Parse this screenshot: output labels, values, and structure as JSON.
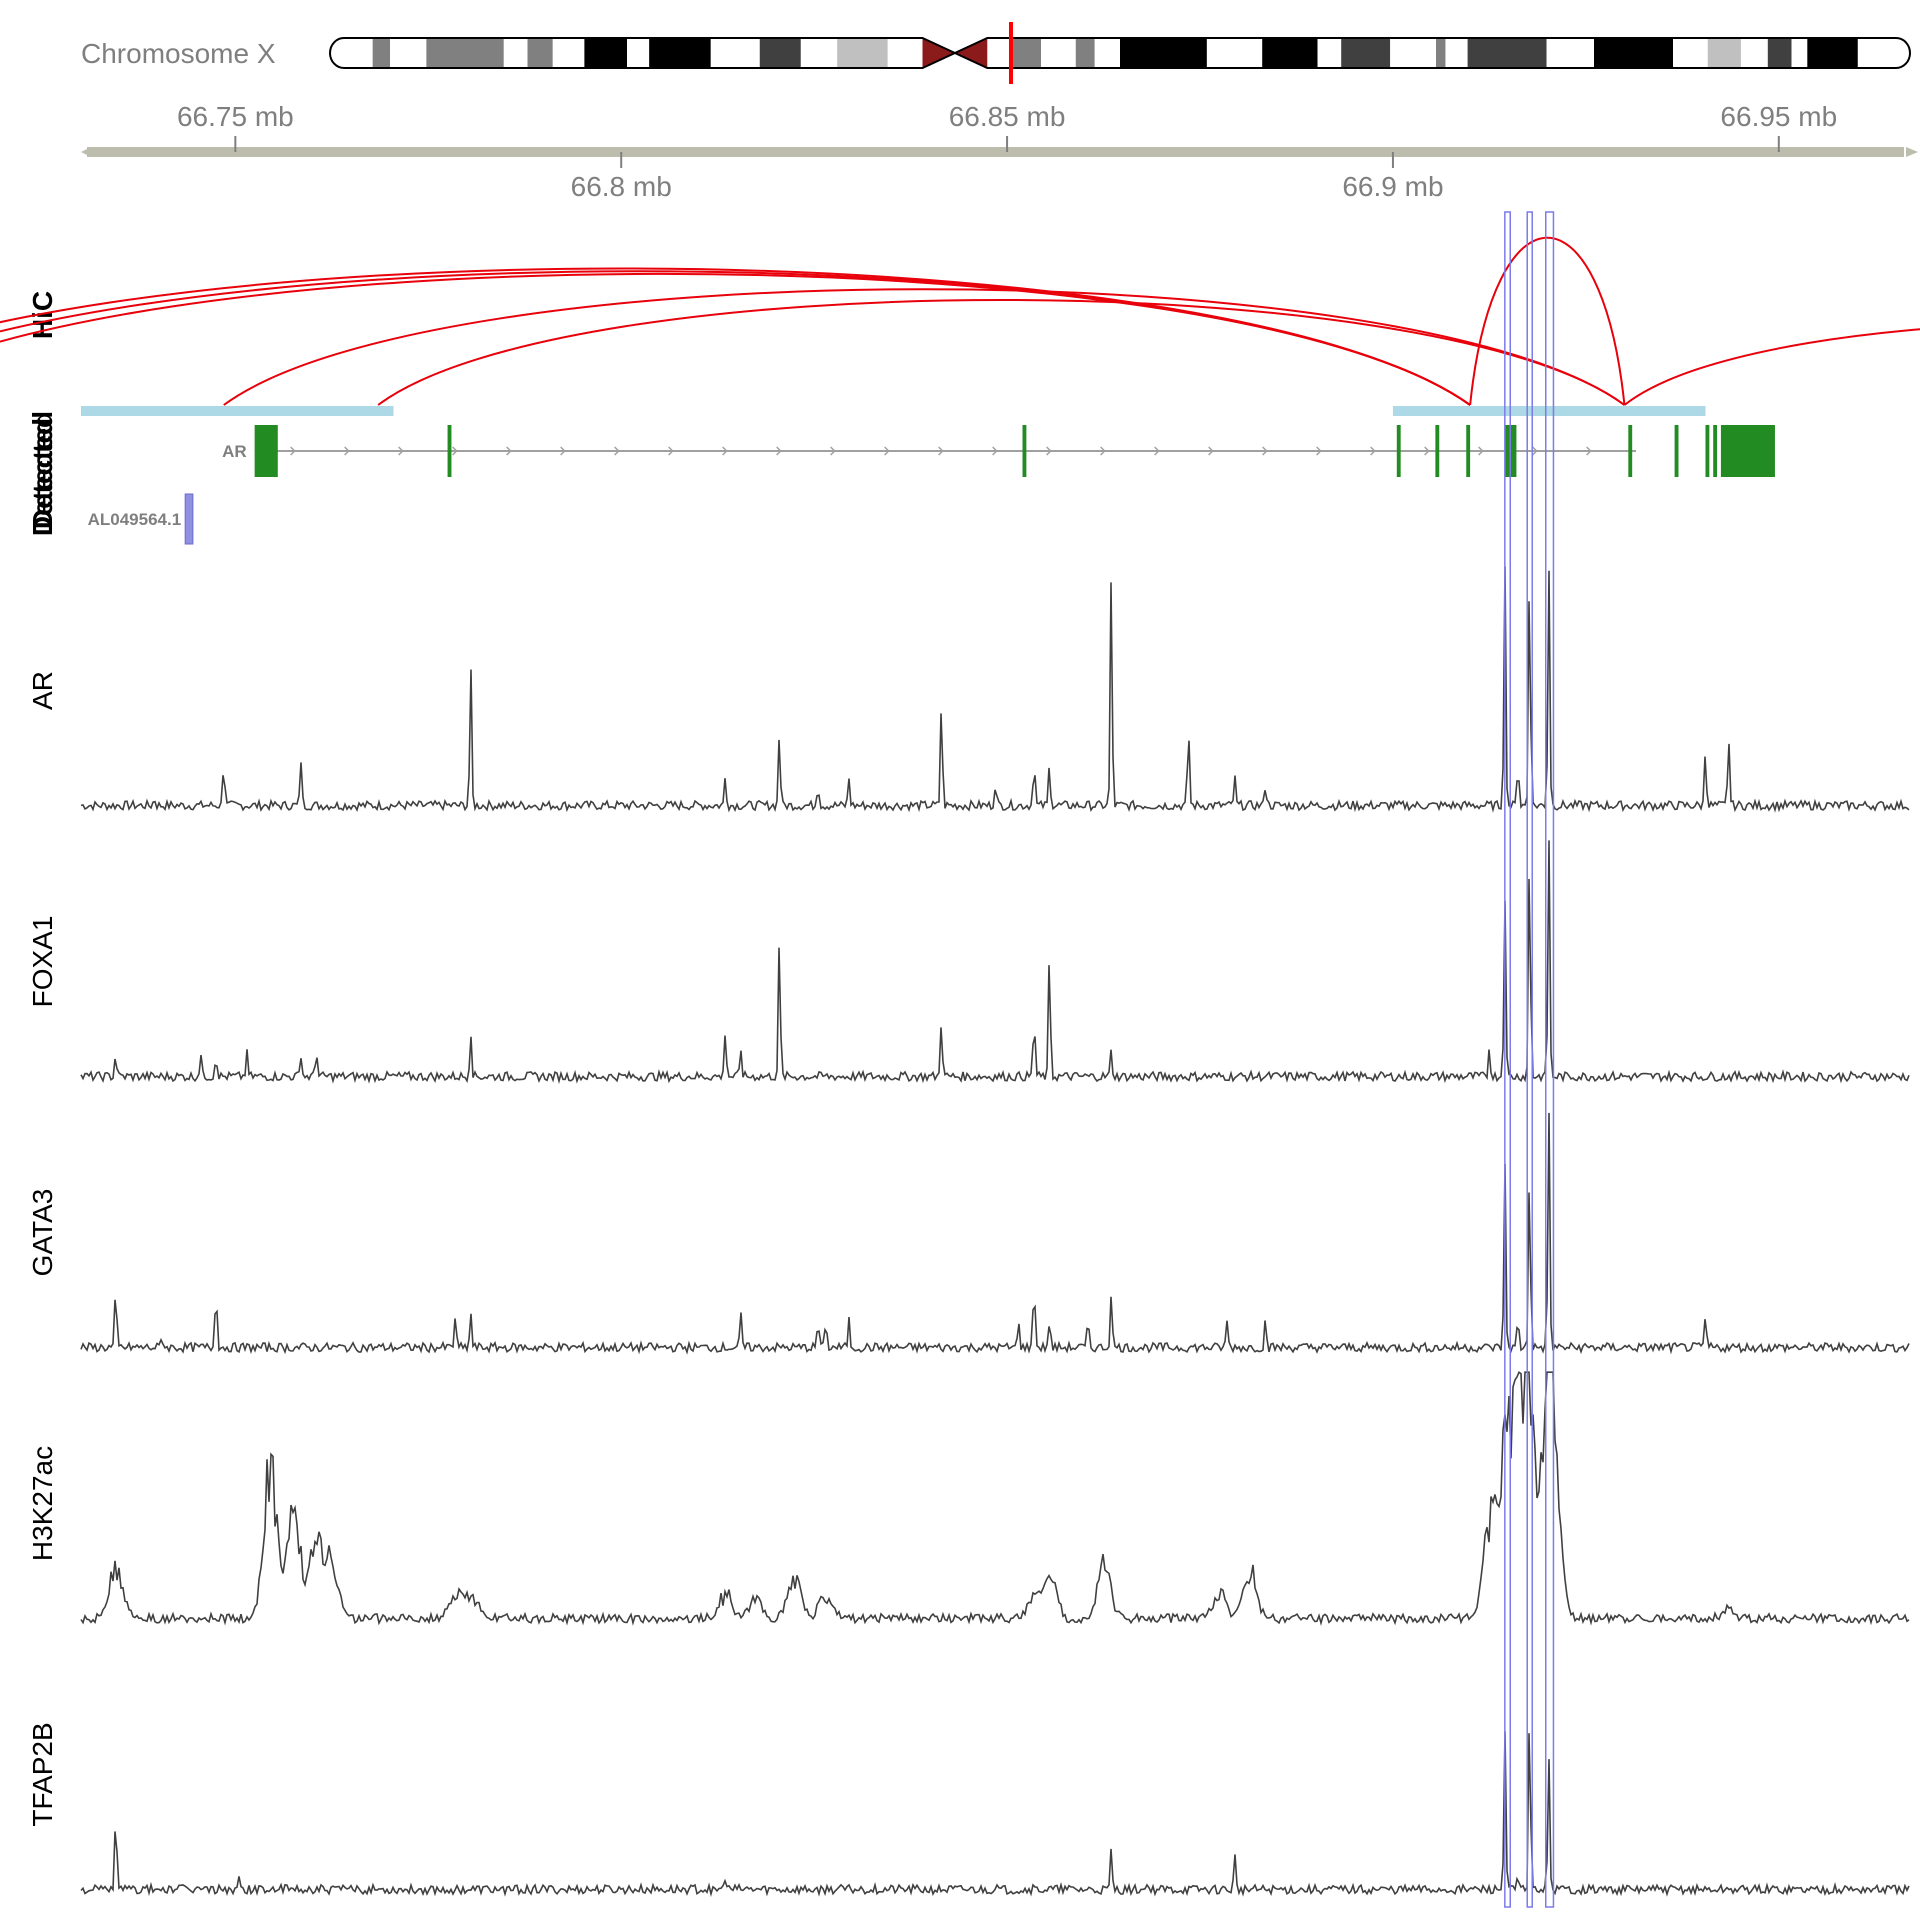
{
  "ideogram": {
    "label": "Chromosome X",
    "bands": [
      {
        "from": 0,
        "to": 0.027,
        "stain": "white"
      },
      {
        "from": 0.027,
        "to": 0.038,
        "stain": "#808080"
      },
      {
        "from": 0.038,
        "to": 0.061,
        "stain": "white"
      },
      {
        "from": 0.061,
        "to": 0.11,
        "stain": "#808080"
      },
      {
        "from": 0.11,
        "to": 0.125,
        "stain": "white"
      },
      {
        "from": 0.125,
        "to": 0.141,
        "stain": "#808080"
      },
      {
        "from": 0.141,
        "to": 0.161,
        "stain": "white"
      },
      {
        "from": 0.161,
        "to": 0.188,
        "stain": "#000000"
      },
      {
        "from": 0.188,
        "to": 0.202,
        "stain": "white"
      },
      {
        "from": 0.202,
        "to": 0.241,
        "stain": "#000000"
      },
      {
        "from": 0.241,
        "to": 0.272,
        "stain": "white"
      },
      {
        "from": 0.272,
        "to": 0.298,
        "stain": "#404040"
      },
      {
        "from": 0.298,
        "to": 0.321,
        "stain": "white"
      },
      {
        "from": 0.321,
        "to": 0.353,
        "stain": "#c0c0c0"
      },
      {
        "from": 0.353,
        "to": 0.375,
        "stain": "white"
      },
      {
        "from": 0.416,
        "to": 0.431,
        "stain": "white"
      },
      {
        "from": 0.431,
        "to": 0.45,
        "stain": "#808080"
      },
      {
        "from": 0.45,
        "to": 0.472,
        "stain": "white"
      },
      {
        "from": 0.472,
        "to": 0.484,
        "stain": "#808080"
      },
      {
        "from": 0.484,
        "to": 0.5,
        "stain": "white"
      },
      {
        "from": 0.5,
        "to": 0.555,
        "stain": "#000000"
      },
      {
        "from": 0.555,
        "to": 0.59,
        "stain": "white"
      },
      {
        "from": 0.59,
        "to": 0.625,
        "stain": "#000000"
      },
      {
        "from": 0.625,
        "to": 0.64,
        "stain": "white"
      },
      {
        "from": 0.64,
        "to": 0.671,
        "stain": "#404040"
      },
      {
        "from": 0.671,
        "to": 0.7,
        "stain": "white"
      },
      {
        "from": 0.7,
        "to": 0.706,
        "stain": "#808080"
      },
      {
        "from": 0.706,
        "to": 0.72,
        "stain": "white"
      },
      {
        "from": 0.72,
        "to": 0.77,
        "stain": "#404040"
      },
      {
        "from": 0.77,
        "to": 0.8,
        "stain": "white"
      },
      {
        "from": 0.8,
        "to": 0.85,
        "stain": "#000000"
      },
      {
        "from": 0.85,
        "to": 0.872,
        "stain": "white"
      },
      {
        "from": 0.872,
        "to": 0.893,
        "stain": "#c0c0c0"
      },
      {
        "from": 0.893,
        "to": 0.91,
        "stain": "white"
      },
      {
        "from": 0.91,
        "to": 0.925,
        "stain": "#404040"
      },
      {
        "from": 0.925,
        "to": 0.935,
        "stain": "white"
      },
      {
        "from": 0.935,
        "to": 0.967,
        "stain": "#000000"
      },
      {
        "from": 0.967,
        "to": 1,
        "stain": "white"
      }
    ],
    "centromere": {
      "from": 0.375,
      "to": 0.416,
      "color": "#8b1a1a"
    },
    "highlight": {
      "pos": 0.431,
      "color": "#ff0000"
    }
  },
  "axis": {
    "start_mb": 66.73,
    "end_mb": 66.967,
    "ticks": [
      {
        "mb": 66.75,
        "label": "66.75 mb",
        "row": "top"
      },
      {
        "mb": 66.8,
        "label": "66.8 mb",
        "row": "bottom"
      },
      {
        "mb": 66.85,
        "label": "66.85 mb",
        "row": "top"
      },
      {
        "mb": 66.9,
        "label": "66.9 mb",
        "row": "bottom"
      },
      {
        "mb": 66.95,
        "label": "66.95 mb",
        "row": "top"
      }
    ]
  },
  "hic": {
    "label": "HiC",
    "color": "#e8000b",
    "loops": [
      {
        "start": 66.7,
        "end": 66.91
      },
      {
        "start": 66.695,
        "end": 66.91
      },
      {
        "start": 66.69,
        "end": 66.91
      },
      {
        "start": 66.7485,
        "end": 66.93
      },
      {
        "start": 66.7685,
        "end": 66.93
      },
      {
        "start": 66.91,
        "end": 66.93
      },
      {
        "start": 66.93,
        "end": 67.05
      }
    ]
  },
  "detected": {
    "label_a": "Detected",
    "label_b": "Detected",
    "color": "#add8e6",
    "regions": [
      {
        "start": 66.73,
        "end": 66.7705
      },
      {
        "start": 66.9,
        "end": 66.9405
      }
    ]
  },
  "genes": {
    "ar": {
      "name": "AR",
      "start": 66.7525,
      "end": 66.9315,
      "color": "#228b22",
      "exons": [
        {
          "s": 66.7525,
          "e": 66.7555
        },
        {
          "s": 66.7775,
          "e": 66.778
        },
        {
          "s": 66.852,
          "e": 66.8525
        },
        {
          "s": 66.9005,
          "e": 66.901
        },
        {
          "s": 66.9055,
          "e": 66.906
        },
        {
          "s": 66.9095,
          "e": 66.91
        },
        {
          "s": 66.9145,
          "e": 66.916
        },
        {
          "s": 66.9305,
          "e": 66.931
        },
        {
          "s": 66.9365,
          "e": 66.937
        },
        {
          "s": 66.9405,
          "e": 66.941
        },
        {
          "s": 66.9415,
          "e": 66.942
        },
        {
          "s": 66.9425,
          "e": 66.9495
        }
      ]
    },
    "lnc": {
      "name": "AL049564.1",
      "start": 66.7435,
      "end": 66.7445,
      "color": "#9090e0"
    }
  },
  "highlights": [
    {
      "start": 66.9145,
      "end": 66.9152
    },
    {
      "start": 66.9174,
      "end": 66.918
    },
    {
      "start": 66.9198,
      "end": 66.9208
    }
  ],
  "signals": [
    {
      "label": "AR",
      "color": "#404040"
    },
    {
      "label": "FOXA1",
      "color": "#404040"
    },
    {
      "label": "GATA3",
      "color": "#404040"
    },
    {
      "label": "H3K27ac",
      "color": "#404040"
    },
    {
      "label": "TFAP2B",
      "color": "#404040"
    }
  ],
  "signal_peaks": {
    "AR": [
      [
        66.7395,
        0.03
      ],
      [
        66.7485,
        0.2
      ],
      [
        66.7585,
        0.2
      ],
      [
        66.7805,
        0.6
      ],
      [
        66.8135,
        0.13
      ],
      [
        66.8205,
        0.32
      ],
      [
        66.8255,
        0.1
      ],
      [
        66.8295,
        0.12
      ],
      [
        66.8415,
        0.46
      ],
      [
        66.8535,
        0.2
      ],
      [
        66.8555,
        0.18
      ],
      [
        66.8485,
        0.1
      ],
      [
        66.8635,
        1.0
      ],
      [
        66.8735,
        0.34
      ],
      [
        66.8795,
        0.12
      ],
      [
        66.8835,
        0.1
      ],
      [
        66.9145,
        1.05
      ],
      [
        66.9162,
        0.2
      ],
      [
        66.9177,
        1.05
      ],
      [
        66.9202,
        1.05
      ],
      [
        66.9405,
        0.25
      ],
      [
        66.9435,
        0.3
      ],
      [
        66.9675,
        0.2
      ],
      [
        66.9735,
        0.25
      ]
    ],
    "FOXA1": [
      [
        66.7345,
        0.1
      ],
      [
        66.7455,
        0.1
      ],
      [
        66.7475,
        0.1
      ],
      [
        66.7515,
        0.1
      ],
      [
        66.7585,
        0.1
      ],
      [
        66.7605,
        0.12
      ],
      [
        66.7805,
        0.2
      ],
      [
        66.8135,
        0.21
      ],
      [
        66.8155,
        0.12
      ],
      [
        66.8205,
        0.6
      ],
      [
        66.8415,
        0.26
      ],
      [
        66.8535,
        0.27
      ],
      [
        66.8555,
        0.54
      ],
      [
        66.8635,
        0.11
      ],
      [
        66.9125,
        0.13
      ],
      [
        66.9145,
        0.8
      ],
      [
        66.9177,
        1.0
      ],
      [
        66.9202,
        1.05
      ],
      [
        66.9675,
        0.54
      ]
    ],
    "GATA3": [
      [
        66.7345,
        0.25
      ],
      [
        66.7405,
        0.05
      ],
      [
        66.7475,
        0.28
      ],
      [
        66.7785,
        0.14
      ],
      [
        66.7805,
        0.15
      ],
      [
        66.8155,
        0.14
      ],
      [
        66.8255,
        0.12
      ],
      [
        66.8265,
        0.12
      ],
      [
        66.8295,
        0.12
      ],
      [
        66.8515,
        0.12
      ],
      [
        66.8535,
        0.3
      ],
      [
        66.8555,
        0.12
      ],
      [
        66.8605,
        0.12
      ],
      [
        66.8635,
        0.25
      ],
      [
        66.8785,
        0.12
      ],
      [
        66.8835,
        0.13
      ],
      [
        66.9145,
        0.8
      ],
      [
        66.9162,
        0.12
      ],
      [
        66.9177,
        0.8
      ],
      [
        66.9202,
        1.05
      ],
      [
        66.9405,
        0.14
      ],
      [
        66.9675,
        0.26
      ]
    ],
    "H3K27ac": [
      [
        66.7345,
        0.28
      ],
      [
        66.7545,
        0.8
      ],
      [
        66.7575,
        0.6
      ],
      [
        66.7605,
        0.45
      ],
      [
        66.7625,
        0.3
      ],
      [
        66.7785,
        0.12
      ],
      [
        66.7805,
        0.12
      ],
      [
        66.8135,
        0.13
      ],
      [
        66.8175,
        0.12
      ],
      [
        66.8225,
        0.22
      ],
      [
        66.8265,
        0.12
      ],
      [
        66.8535,
        0.13
      ],
      [
        66.8555,
        0.22
      ],
      [
        66.8625,
        0.3
      ],
      [
        66.8775,
        0.14
      ],
      [
        66.8815,
        0.25
      ],
      [
        66.9125,
        0.5
      ],
      [
        66.9145,
        0.8
      ],
      [
        66.9162,
        0.9
      ],
      [
        66.9177,
        1.0
      ],
      [
        66.9202,
        1.05
      ],
      [
        66.921,
        0.4
      ],
      [
        66.9435,
        0.05
      ],
      [
        66.9735,
        0.05
      ]
    ],
    "TFAP2B": [
      [
        66.7345,
        0.35
      ],
      [
        66.7505,
        0.04
      ],
      [
        66.8135,
        0.06
      ],
      [
        66.8635,
        0.17
      ],
      [
        66.8795,
        0.15
      ],
      [
        66.9145,
        0.7
      ],
      [
        66.9162,
        0.05
      ],
      [
        66.9177,
        0.8
      ],
      [
        66.9202,
        0.6
      ]
    ]
  }
}
